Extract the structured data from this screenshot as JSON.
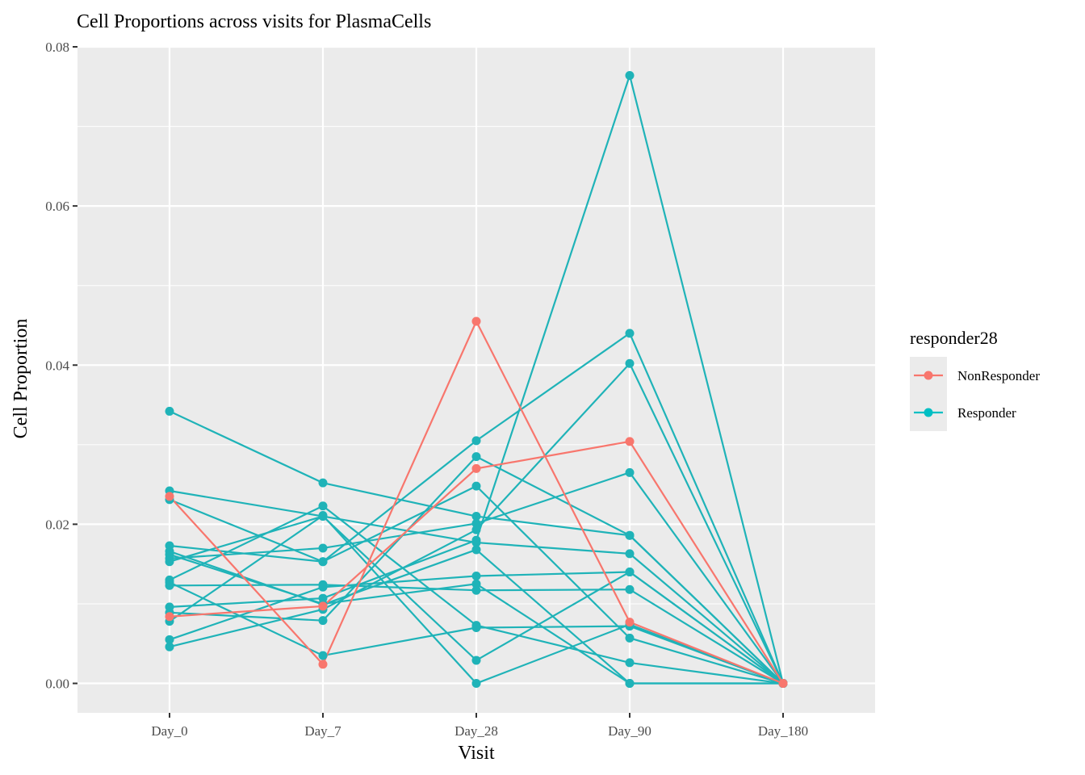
{
  "chart_data": {
    "type": "line",
    "title": "Cell Proportions across visits for PlasmaCells",
    "xlabel": "Visit",
    "ylabel": "Cell Proportion",
    "categories": [
      "Day_0",
      "Day_7",
      "Day_28",
      "Day_90",
      "Day_180"
    ],
    "ylim": [
      -0.0037,
      0.08
    ],
    "yticks": [
      0.0,
      0.02,
      0.04,
      0.06,
      0.08
    ],
    "ytick_labels": [
      "0.00",
      "0.02",
      "0.04",
      "0.06",
      "0.08"
    ],
    "grid": true,
    "legend": {
      "title": "responder28",
      "position": "right",
      "entries": [
        {
          "label": "NonResponder",
          "color": "#f8766d"
        },
        {
          "label": "Responder",
          "color": "#00bfc4"
        }
      ]
    },
    "colors": {
      "NonResponder": "#f8766d",
      "Responder": "#1fb3b8",
      "panel": "#ebebeb",
      "grid": "#ffffff"
    },
    "series": [
      {
        "group": "Responder",
        "values": [
          0.0342,
          0.0252,
          0.021,
          0.0186,
          0.0
        ]
      },
      {
        "group": "Responder",
        "values": [
          0.0242,
          0.021,
          0.0177,
          0.0163,
          0.0
        ]
      },
      {
        "group": "Responder",
        "values": [
          0.0231,
          0.0153,
          0.0248,
          0.0057,
          0.0
        ]
      },
      {
        "group": "Responder",
        "values": [
          0.0173,
          0.0153,
          0.0305,
          0.044,
          0.0
        ]
      },
      {
        "group": "Responder",
        "values": [
          0.0166,
          0.0099,
          0.0168,
          0.0,
          0.0
        ]
      },
      {
        "group": "Responder",
        "values": [
          0.0157,
          0.017,
          0.0201,
          0.0265,
          0.0
        ]
      },
      {
        "group": "Responder",
        "values": [
          0.0153,
          0.021,
          0.0029,
          0.014,
          0.0
        ]
      },
      {
        "group": "Responder",
        "values": [
          0.013,
          0.0223,
          0.0073,
          0.0026,
          0.0
        ]
      },
      {
        "group": "Responder",
        "values": [
          0.0123,
          0.0124,
          0.0117,
          0.0118,
          0.0
        ]
      },
      {
        "group": "Responder",
        "values": [
          0.0096,
          0.0107,
          0.018,
          0.0764,
          0.0
        ]
      },
      {
        "group": "Responder",
        "values": [
          0.0089,
          0.0079,
          0.0285,
          0.0186,
          0.0
        ]
      },
      {
        "group": "Responder",
        "values": [
          0.0078,
          0.0211,
          0.0,
          0.0074,
          0.0
        ]
      },
      {
        "group": "Responder",
        "values": [
          0.0055,
          0.0121,
          0.0135,
          0.014,
          0.0
        ]
      },
      {
        "group": "Responder",
        "values": [
          0.0046,
          0.0093,
          0.0193,
          0.0402,
          0.0
        ]
      },
      {
        "group": "Responder",
        "values": [
          0.0127,
          0.0035,
          0.007,
          0.0072,
          0.0
        ]
      },
      {
        "group": "Responder",
        "values": [
          0.0162,
          0.01,
          0.0125,
          0.0,
          0.0
        ]
      },
      {
        "group": "NonResponder",
        "values": [
          0.0235,
          0.0024,
          0.0455,
          0.0077,
          0.0
        ]
      },
      {
        "group": "NonResponder",
        "values": [
          0.0084,
          0.0097,
          0.027,
          0.0304,
          0.0
        ]
      }
    ]
  }
}
